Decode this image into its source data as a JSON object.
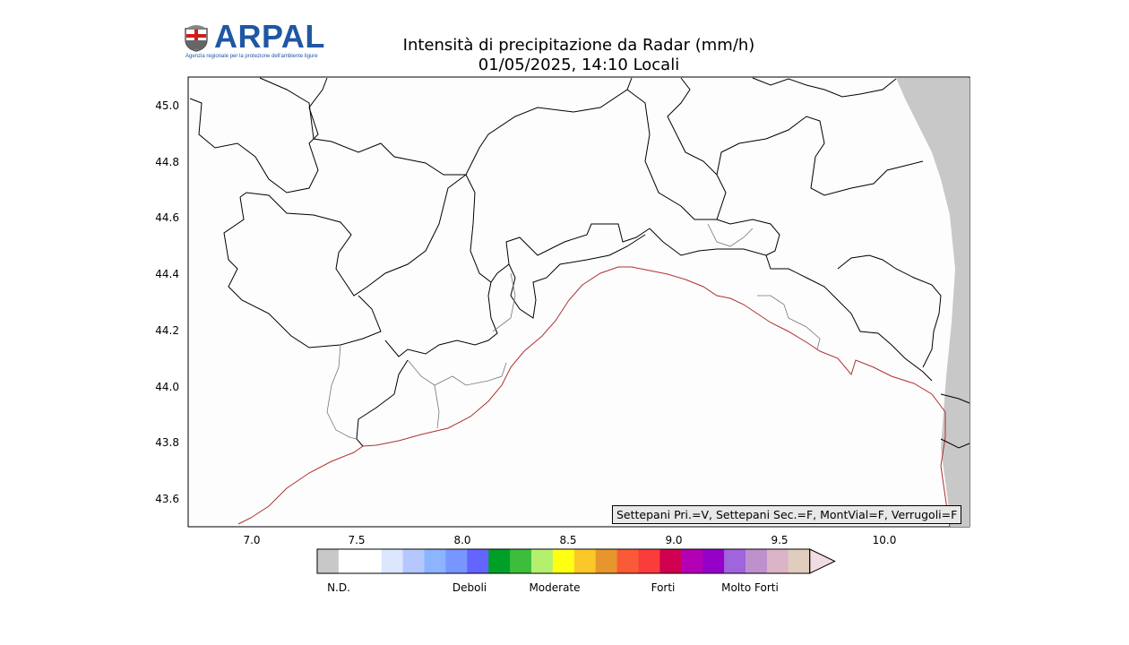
{
  "header": {
    "logo_text": "ARPAL",
    "logo_tagline": "Agenzia regionale per la protezione dell'ambiente ligure",
    "title_line1": "Intensità di precipitazione da Radar (mm/h)",
    "title_line2": "01/05/2025, 14:10 Locali"
  },
  "map": {
    "lon_ticks": [
      "7.0",
      "7.5",
      "8.0",
      "8.5",
      "9.0",
      "9.5",
      "10.0"
    ],
    "lat_ticks": [
      "45.0",
      "44.8",
      "44.6",
      "44.4",
      "44.2",
      "44.0",
      "43.8",
      "43.6"
    ],
    "lon_range": [
      6.7,
      10.4
    ],
    "lat_range": [
      43.5,
      45.1
    ],
    "status_text": "Settepani Pri.=V, Settepani Sec.=F, MontVial=F, Verrugoli=F",
    "no_data_color": "#c8c8c8",
    "coast_color": "#b03030"
  },
  "colorbar": {
    "labels": [
      "N.D.",
      "Deboli",
      "Moderate",
      "Forti",
      "Molto Forti"
    ],
    "colors": [
      "#c8c8c8",
      "#ffffff",
      "#ffffff",
      "#dce6ff",
      "#b4c8ff",
      "#8cb4ff",
      "#7896ff",
      "#6464ff",
      "#00a028",
      "#3cbe3c",
      "#b4f06e",
      "#ffff14",
      "#fac828",
      "#e6962d",
      "#fa5a37",
      "#fa3c3c",
      "#d20050",
      "#b400b4",
      "#9600c8",
      "#a064dc",
      "#be91cd",
      "#dcb4c8",
      "#e1cdbe"
    ],
    "extend_color": "#f0dce1"
  },
  "chart_data": {
    "type": "heatmap",
    "title": "Intensità di precipitazione da Radar (mm/h)",
    "subtitle": "01/05/2025, 14:10 Locali",
    "xlim": [
      6.7,
      10.4
    ],
    "ylim": [
      43.5,
      45.1
    ],
    "xticks": [
      7.0,
      7.5,
      8.0,
      8.5,
      9.0,
      9.5,
      10.0
    ],
    "yticks": [
      43.6,
      43.8,
      44.0,
      44.2,
      44.4,
      44.6,
      44.8,
      45.0
    ],
    "precipitation_shown": false
  }
}
